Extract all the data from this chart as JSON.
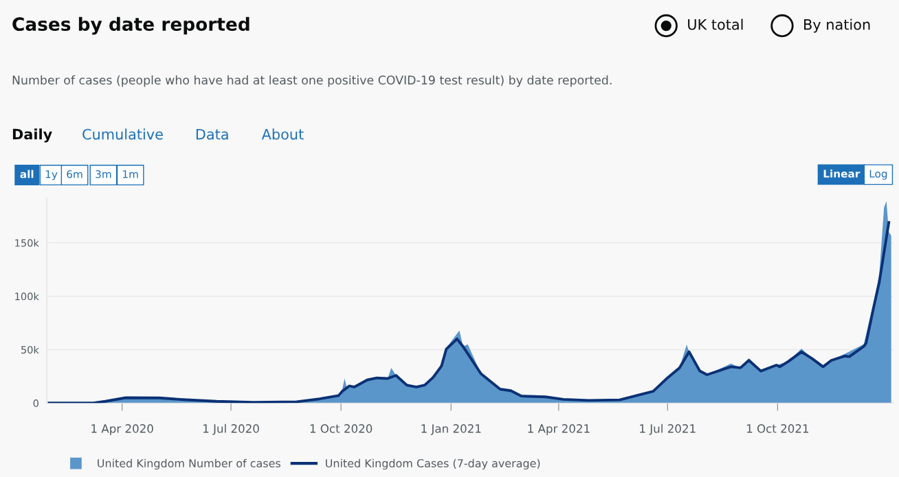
{
  "chart_data": {
    "type": "area",
    "title": "Cases by date reported",
    "subtitle": "Number of cases (people who have had at least one positive COVID-19 test result) by date reported.",
    "annotations": [
      "UK total",
      "By nation",
      "Daily",
      "Cumulative",
      "Data",
      "About",
      "all",
      "1y",
      "6m",
      "3m",
      "1m",
      "Linear",
      "Log"
    ],
    "xlim": [
      "2020-01-29",
      "2022-01-06"
    ],
    "xticks": [
      {
        "value": "2020-04-01",
        "label": "1 Apr 2020"
      },
      {
        "value": "2020-07-01",
        "label": "1 Jul 2020"
      },
      {
        "value": "2020-10-01",
        "label": "1 Oct 2020"
      },
      {
        "value": "2021-01-01",
        "label": "1 Jan 2021"
      },
      {
        "value": "2021-04-01",
        "label": "1 Apr 2021"
      },
      {
        "value": "2021-07-01",
        "label": "1 Jul 2021"
      },
      {
        "value": "2021-10-01",
        "label": "1 Oct 2021"
      }
    ],
    "ylim": [
      0,
      192000
    ],
    "yticks": [
      0,
      {
        "value": 50000,
        "label": "50k"
      },
      {
        "value": 100000,
        "label": "100k"
      },
      {
        "value": 150000,
        "label": "150k"
      }
    ],
    "grid": "y",
    "legend": "bottom",
    "series": [
      {
        "name": "United Kingdom Number of cases",
        "color": "#5b96cb",
        "x": [
          "2020-01-31",
          "2020-03-08",
          "2020-03-18",
          "2020-04-04",
          "2020-05-02",
          "2020-05-22",
          "2020-06-19",
          "2020-07-20",
          "2020-08-25",
          "2020-09-13",
          "2020-09-29",
          "2020-10-01",
          "2020-10-04",
          "2020-10-06",
          "2020-10-12",
          "2020-10-23",
          "2020-10-31",
          "2020-11-09",
          "2020-11-12",
          "2020-11-16",
          "2020-11-25",
          "2020-12-03",
          "2020-12-10",
          "2020-12-17",
          "2020-12-24",
          "2020-12-29",
          "2021-01-08",
          "2021-01-11",
          "2021-01-15",
          "2021-01-26",
          "2021-02-11",
          "2021-02-20",
          "2021-03-01",
          "2021-03-21",
          "2021-04-05",
          "2021-04-26",
          "2021-05-22",
          "2021-06-19",
          "2021-06-30",
          "2021-07-11",
          "2021-07-17",
          "2021-07-19",
          "2021-07-28",
          "2021-08-03",
          "2021-08-23",
          "2021-08-31",
          "2021-09-07",
          "2021-09-17",
          "2021-09-30",
          "2021-10-10",
          "2021-10-21",
          "2021-10-30",
          "2021-11-08",
          "2021-11-15",
          "2021-11-26",
          "2021-12-12",
          "2021-12-20",
          "2021-12-25",
          "2021-12-29",
          "2021-12-31",
          "2022-01-02",
          "2022-01-04"
        ],
        "values": [
          0,
          0,
          1600,
          5500,
          5000,
          3200,
          1600,
          700,
          1200,
          3900,
          7000,
          7000,
          23000,
          14000,
          15000,
          21700,
          23500,
          23000,
          33000,
          25900,
          16800,
          15000,
          16800,
          24000,
          36000,
          53000,
          68000,
          53000,
          55000,
          27500,
          13000,
          11600,
          6500,
          5800,
          3500,
          2500,
          3000,
          11000,
          22600,
          33000,
          54700,
          48000,
          30000,
          26500,
          37000,
          33000,
          42000,
          30000,
          35500,
          39000,
          51000,
          41500,
          34000,
          40000,
          46000,
          55000,
          93000,
          120000,
          183000,
          189000,
          160000,
          157000
        ]
      },
      {
        "name": "United Kingdom Cases (7-day average)",
        "type": "line",
        "color": "#0b3175",
        "x": [
          "2020-01-31",
          "2020-03-08",
          "2020-03-18",
          "2020-04-04",
          "2020-05-02",
          "2020-05-22",
          "2020-06-19",
          "2020-07-20",
          "2020-08-25",
          "2020-09-13",
          "2020-09-29",
          "2020-10-02",
          "2020-10-08",
          "2020-10-12",
          "2020-10-23",
          "2020-10-31",
          "2020-11-09",
          "2020-11-16",
          "2020-11-25",
          "2020-12-03",
          "2020-12-10",
          "2020-12-17",
          "2020-12-24",
          "2020-12-28",
          "2021-01-06",
          "2021-01-11",
          "2021-01-26",
          "2021-02-11",
          "2021-02-20",
          "2021-03-01",
          "2021-03-21",
          "2021-04-05",
          "2021-04-26",
          "2021-05-22",
          "2021-06-19",
          "2021-06-30",
          "2021-07-11",
          "2021-07-19",
          "2021-07-28",
          "2021-08-03",
          "2021-08-23",
          "2021-08-31",
          "2021-09-07",
          "2021-09-17",
          "2021-09-30",
          "2021-10-03",
          "2021-10-10",
          "2021-10-21",
          "2021-10-30",
          "2021-11-08",
          "2021-11-15",
          "2021-11-26",
          "2021-11-30",
          "2021-12-12",
          "2021-12-14",
          "2021-12-20",
          "2021-12-25",
          "2022-01-02"
        ],
        "values": [
          0,
          0,
          1600,
          5000,
          4800,
          3200,
          1600,
          700,
          1200,
          3900,
          7000,
          11000,
          16000,
          15000,
          21700,
          23500,
          23000,
          25900,
          16800,
          15000,
          16800,
          24000,
          34600,
          50500,
          60000,
          53000,
          27500,
          13000,
          11600,
          6500,
          5800,
          3500,
          2500,
          3000,
          11000,
          22600,
          33000,
          48000,
          30000,
          26500,
          34000,
          33000,
          40000,
          30000,
          35500,
          34000,
          39000,
          48000,
          41500,
          34000,
          40000,
          44000,
          43500,
          53000,
          56000,
          88000,
          113000,
          169000
        ]
      }
    ]
  }
}
